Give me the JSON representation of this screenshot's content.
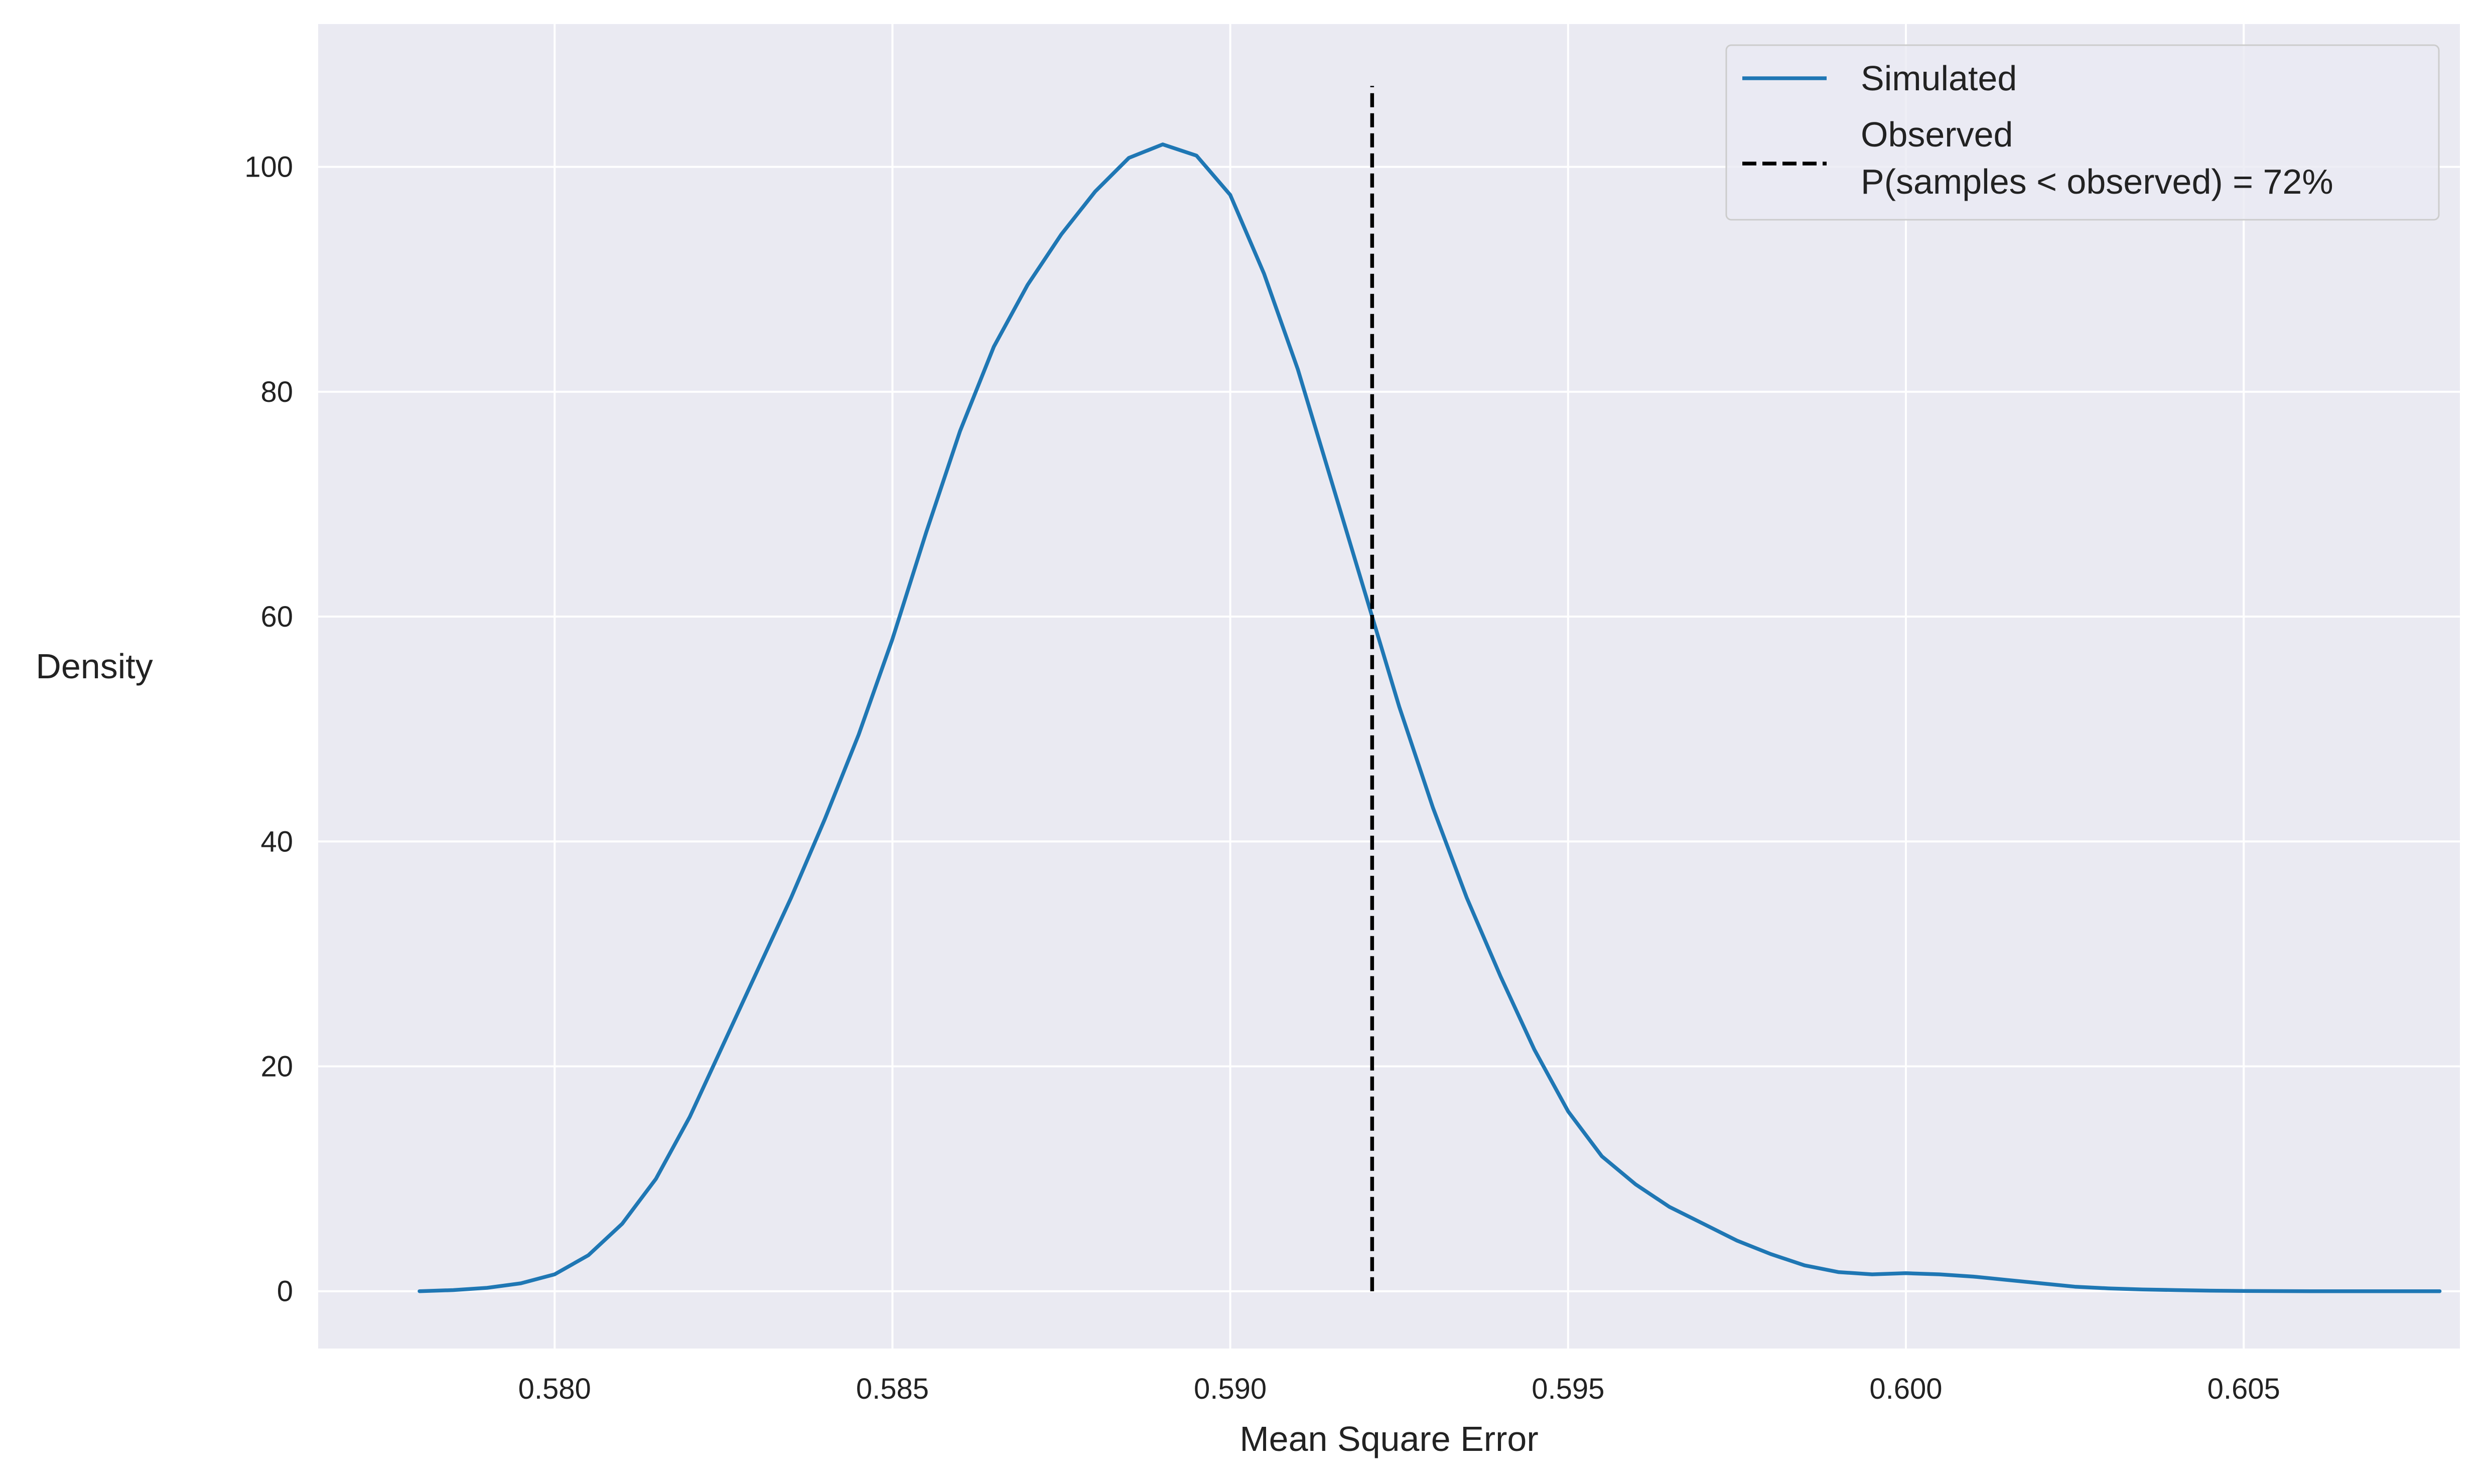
{
  "chart_data": {
    "type": "line",
    "xlabel": "Mean Square Error",
    "ylabel": "Density",
    "xlim": [
      0.5765,
      0.6082
    ],
    "ylim": [
      -5.1,
      112.7
    ],
    "x_ticks": [
      0.58,
      0.585,
      0.59,
      0.595,
      0.6,
      0.605
    ],
    "x_tick_labels": [
      "0.580",
      "0.585",
      "0.590",
      "0.595",
      "0.600",
      "0.605"
    ],
    "y_ticks": [
      0,
      20,
      40,
      60,
      80,
      100
    ],
    "y_tick_labels": [
      "0",
      "20",
      "40",
      "60",
      "80",
      "100"
    ],
    "grid": true,
    "legend_position": "top-right",
    "series": [
      {
        "name": "Simulated",
        "style": "solid",
        "color": "#1f77b4",
        "x": [
          0.578,
          0.5785,
          0.579,
          0.5795,
          0.58,
          0.5805,
          0.581,
          0.5815,
          0.582,
          0.5825,
          0.583,
          0.5835,
          0.584,
          0.5845,
          0.585,
          0.5855,
          0.586,
          0.5865,
          0.587,
          0.5875,
          0.588,
          0.5885,
          0.589,
          0.5895,
          0.59,
          0.5905,
          0.591,
          0.5915,
          0.592,
          0.5925,
          0.593,
          0.5935,
          0.594,
          0.5945,
          0.595,
          0.5955,
          0.596,
          0.5965,
          0.597,
          0.5975,
          0.598,
          0.5985,
          0.599,
          0.5995,
          0.6,
          0.6005,
          0.601,
          0.6015,
          0.602,
          0.6025,
          0.603,
          0.6035,
          0.604,
          0.6045,
          0.605,
          0.6055,
          0.606,
          0.6065,
          0.607,
          0.6075,
          0.6079
        ],
        "y": [
          0.0,
          0.1,
          0.3,
          0.7,
          1.5,
          3.2,
          6.0,
          10.0,
          15.5,
          22.0,
          28.5,
          35.0,
          42.0,
          49.5,
          58.0,
          67.5,
          76.5,
          84.0,
          89.5,
          94.0,
          97.8,
          100.8,
          102.0,
          101.0,
          97.5,
          90.5,
          82.0,
          72.0,
          62.0,
          52.0,
          43.0,
          35.0,
          28.0,
          21.5,
          16.0,
          12.0,
          9.5,
          7.5,
          6.0,
          4.5,
          3.3,
          2.3,
          1.7,
          1.5,
          1.6,
          1.5,
          1.3,
          1.0,
          0.7,
          0.4,
          0.25,
          0.15,
          0.1,
          0.05,
          0.02,
          0.01,
          0.0,
          0.0,
          0.0,
          0.0,
          0.0
        ]
      }
    ],
    "observed_line": {
      "name": "Observed\nP(samples < observed) = 72%",
      "name_lines": [
        "Observed",
        "P(samples < observed) = 72%"
      ],
      "style": "dashed",
      "color": "#000000",
      "x": 0.5921,
      "y_range": [
        0,
        107.2
      ]
    }
  }
}
